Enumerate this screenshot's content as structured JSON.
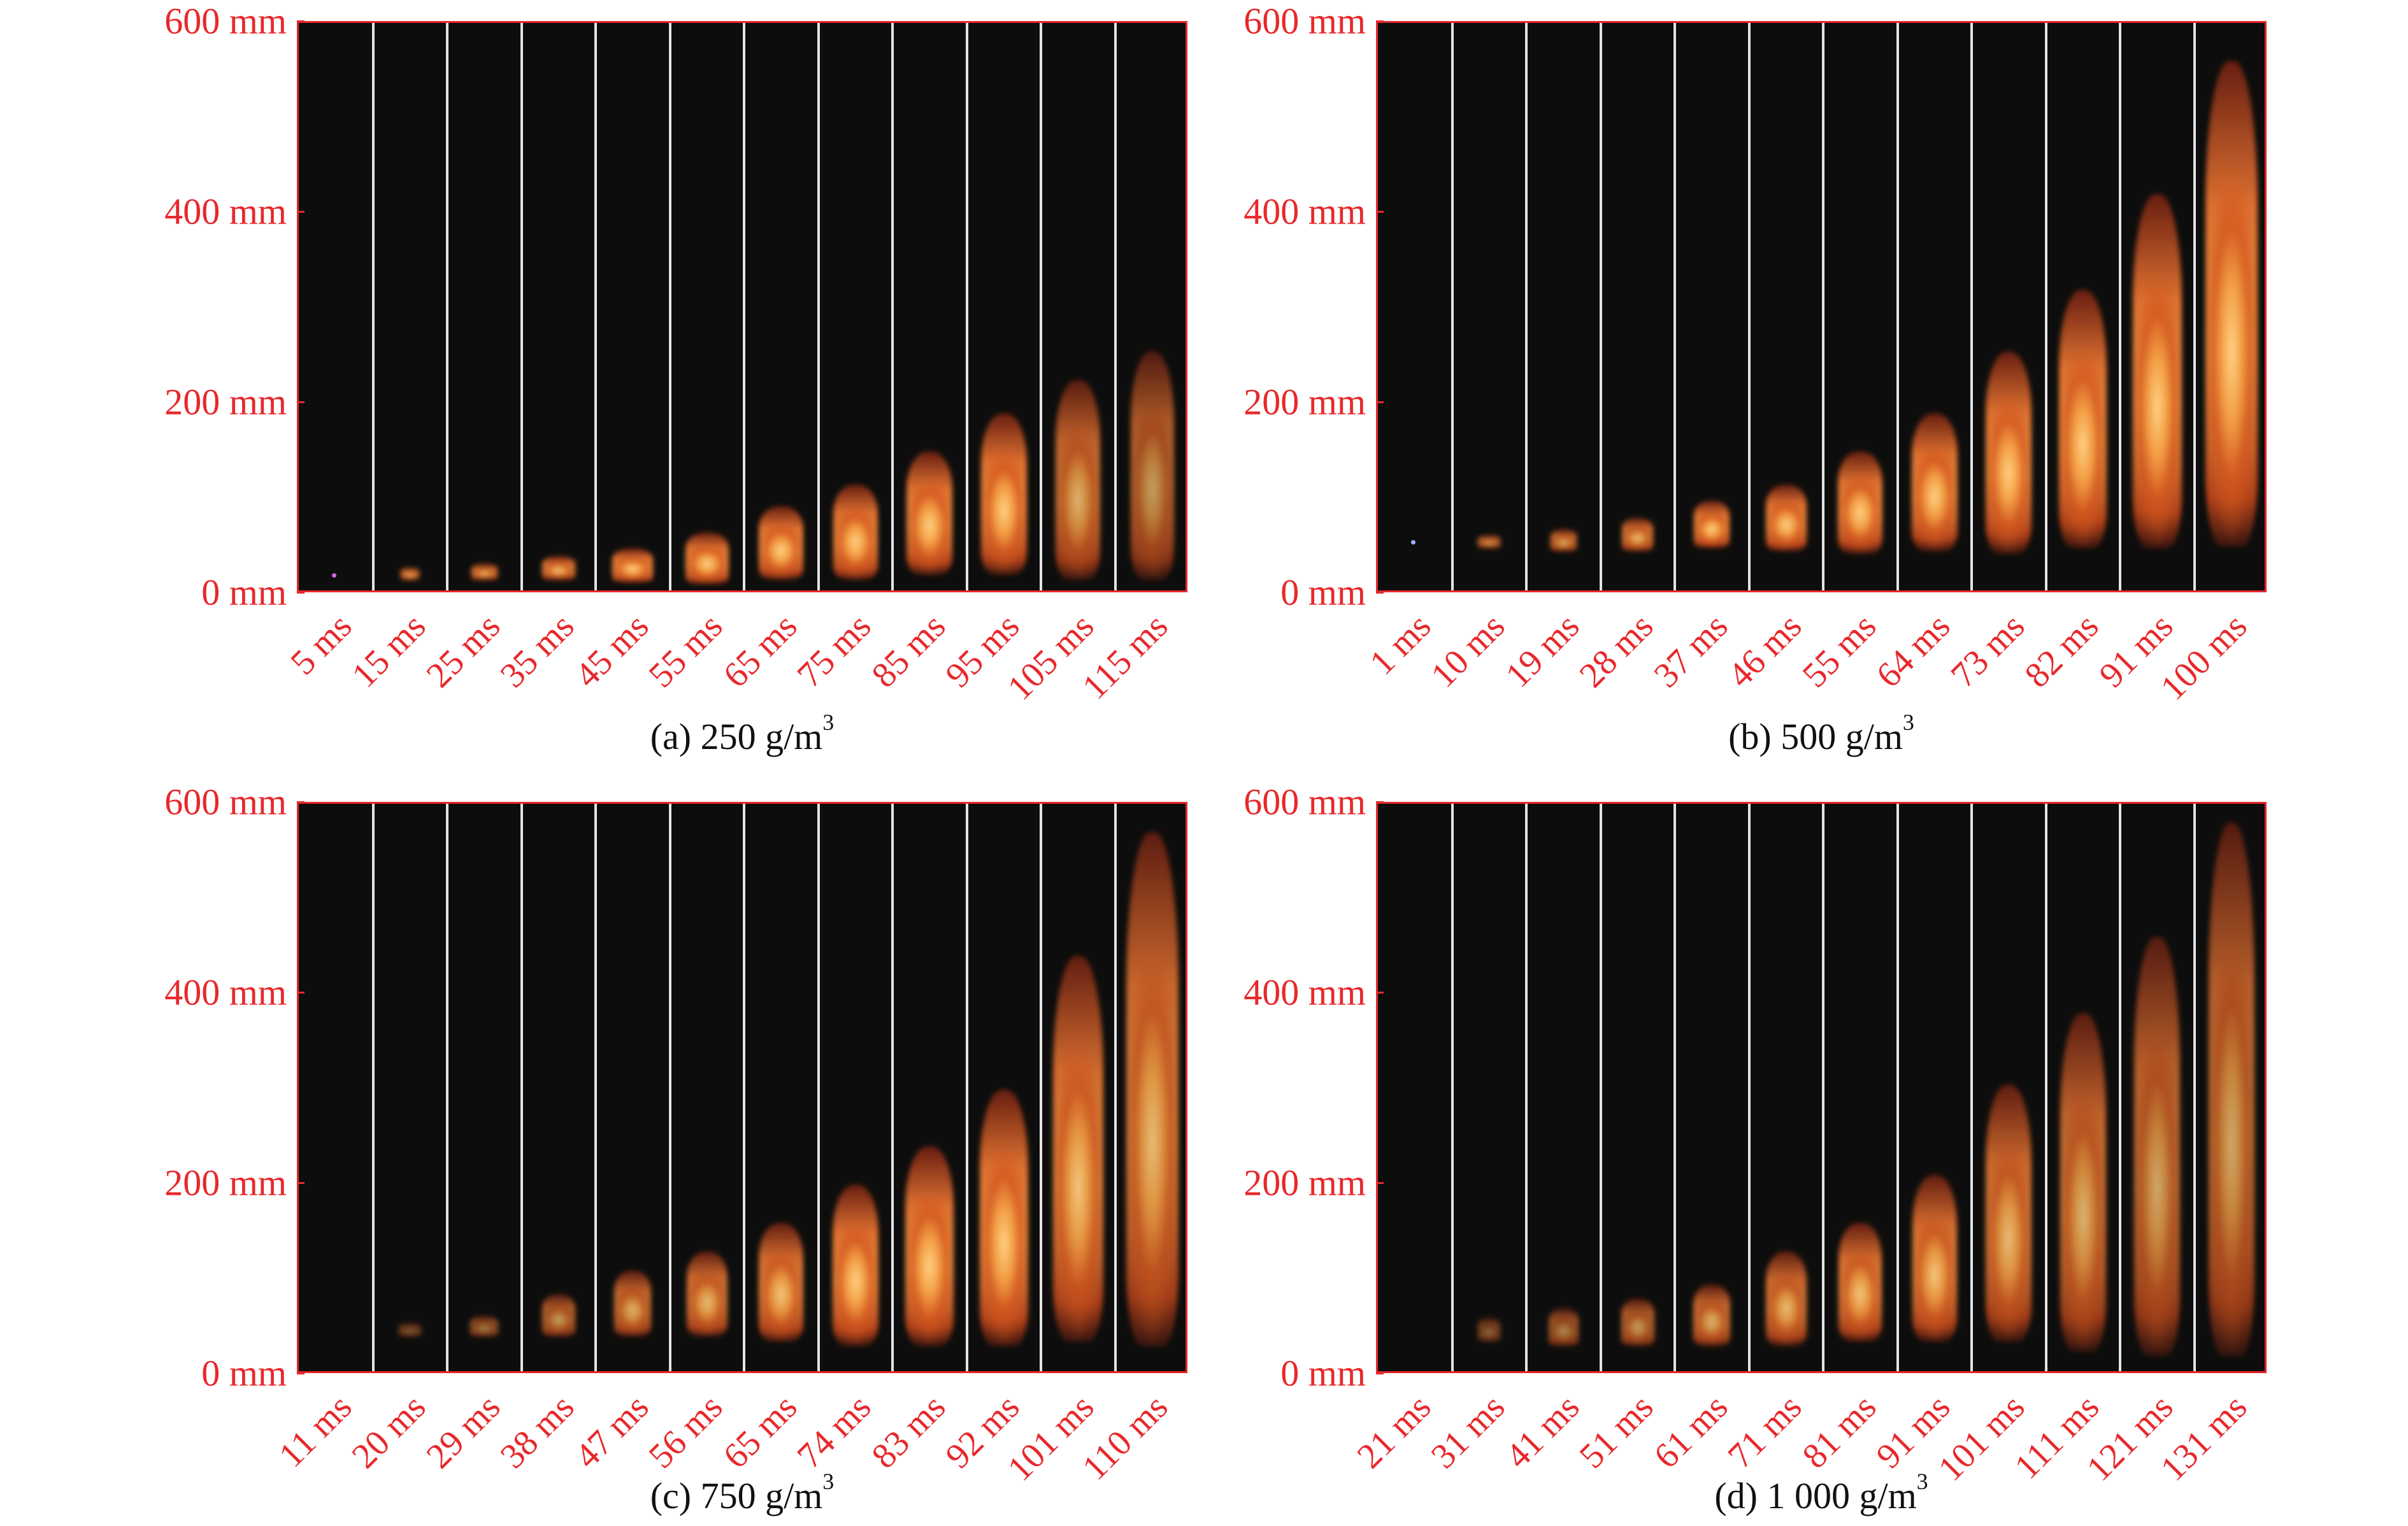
{
  "y_axis": {
    "labels": [
      "600 mm",
      "400 mm",
      "200 mm",
      "0 mm"
    ],
    "range_mm": [
      0,
      600
    ]
  },
  "colors": {
    "axis": "#e8282b",
    "background": "#0c0d0c",
    "separator": "#e4e4e4",
    "flame_core": "#ffd080",
    "flame_edge": "#a01e08"
  },
  "panels": [
    {
      "caption": "(a) 250 g/m",
      "caption_sup": "3",
      "times": [
        "5 ms",
        "15 ms",
        "25 ms",
        "35 ms",
        "45 ms",
        "55 ms",
        "65 ms",
        "75 ms",
        "85 ms",
        "95 ms",
        "105 ms",
        "115 ms"
      ],
      "flame_bottom_mm": [
        18,
        15,
        15,
        15,
        12,
        10,
        15,
        15,
        20,
        20,
        15,
        15
      ],
      "flame_top_mm": [
        20,
        28,
        32,
        40,
        48,
        65,
        92,
        115,
        150,
        190,
        225,
        255
      ],
      "flame_width": [
        0.06,
        0.25,
        0.35,
        0.45,
        0.55,
        0.58,
        0.6,
        0.6,
        0.62,
        0.62,
        0.6,
        0.58
      ],
      "flame_brightness": [
        1,
        0.9,
        0.9,
        0.95,
        1,
        1,
        1,
        1,
        1,
        1,
        0.85,
        0.75
      ]
    },
    {
      "caption": "(b) 500 g/m",
      "caption_sup": "3",
      "times": [
        "1 ms",
        "10 ms",
        "19 ms",
        "28 ms",
        "37 ms",
        "46 ms",
        "55 ms",
        "64 ms",
        "73 ms",
        "82 ms",
        "91 ms",
        "100 ms"
      ],
      "flame_bottom_mm": [
        53,
        48,
        45,
        45,
        48,
        45,
        42,
        45,
        42,
        48,
        48,
        50
      ],
      "flame_top_mm": [
        55,
        62,
        68,
        80,
        98,
        115,
        150,
        190,
        255,
        320,
        420,
        560
      ],
      "flame_width": [
        0.06,
        0.3,
        0.35,
        0.42,
        0.48,
        0.55,
        0.6,
        0.62,
        0.62,
        0.64,
        0.66,
        0.7
      ],
      "flame_brightness": [
        1,
        0.8,
        0.85,
        0.9,
        1,
        1,
        1,
        1,
        1,
        1.05,
        1.1,
        1.15
      ]
    },
    {
      "caption": "(c) 750 g/m",
      "caption_sup": "3",
      "times": [
        "11 ms",
        "20 ms",
        "29 ms",
        "38 ms",
        "47 ms",
        "56 ms",
        "65 ms",
        "74 ms",
        "83 ms",
        "92 ms",
        "101 ms",
        "110 ms"
      ],
      "flame_bottom_mm": [
        45,
        40,
        40,
        40,
        40,
        40,
        35,
        30,
        30,
        30,
        35,
        30
      ],
      "flame_top_mm": [
        45,
        55,
        62,
        85,
        110,
        130,
        160,
        200,
        240,
        300,
        440,
        570
      ],
      "flame_width": [
        0.0,
        0.3,
        0.38,
        0.45,
        0.5,
        0.55,
        0.6,
        0.62,
        0.65,
        0.65,
        0.68,
        0.7
      ],
      "flame_brightness": [
        0,
        0.45,
        0.6,
        0.75,
        0.85,
        0.9,
        0.95,
        1,
        1,
        1,
        0.95,
        0.9
      ]
    },
    {
      "caption": "(d) 1 000 g/m",
      "caption_sup": "3",
      "times": [
        "21 ms",
        "31 ms",
        "41 ms",
        "51 ms",
        "61 ms",
        "71 ms",
        "81 ms",
        "91 ms",
        "101 ms",
        "111 ms",
        "121 ms",
        "131 ms"
      ],
      "flame_bottom_mm": [
        45,
        35,
        30,
        30,
        30,
        30,
        35,
        35,
        35,
        25,
        20,
        20
      ],
      "flame_top_mm": [
        45,
        60,
        70,
        80,
        95,
        130,
        160,
        210,
        305,
        380,
        460,
        580
      ],
      "flame_width": [
        0.0,
        0.3,
        0.4,
        0.45,
        0.5,
        0.55,
        0.58,
        0.6,
        0.62,
        0.62,
        0.62,
        0.62
      ],
      "flame_brightness": [
        0,
        0.5,
        0.65,
        0.75,
        0.85,
        0.9,
        0.95,
        0.95,
        0.9,
        0.85,
        0.8,
        0.8
      ]
    }
  ]
}
